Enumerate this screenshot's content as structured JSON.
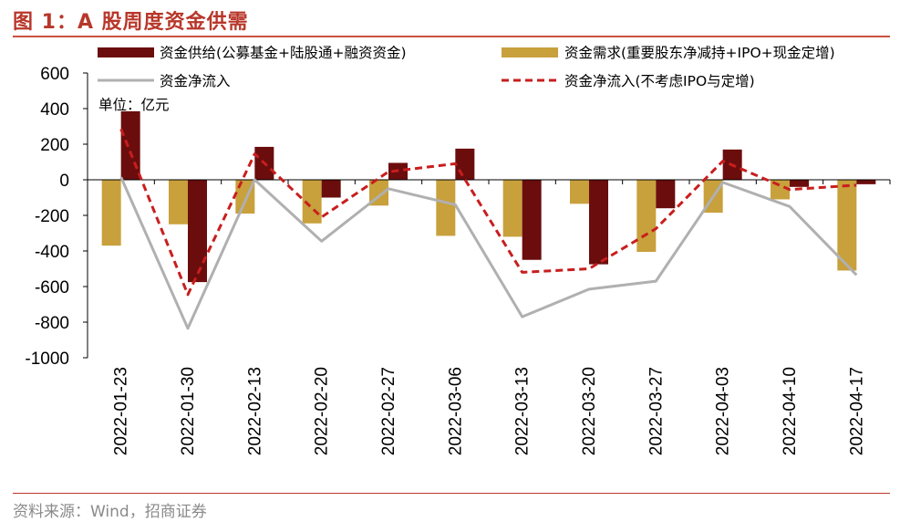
{
  "figure": {
    "title": "图 1：A 股周度资金供需",
    "source": "资料来源：Wind，招商证券",
    "unit": "单位：亿元"
  },
  "colors": {
    "supply": "#6b0d0d",
    "demand": "#c8a03c",
    "net": "#b0b0b0",
    "net_ex": "#c81e1e",
    "title": "#b8372a"
  },
  "chart_data": {
    "type": "bar",
    "categories": [
      "2022-01-23",
      "2022-01-30",
      "2022-02-13",
      "2022-02-20",
      "2022-02-27",
      "2022-03-06",
      "2022-03-13",
      "2022-03-20",
      "2022-03-27",
      "2022-04-03",
      "2022-04-10",
      "2022-04-17"
    ],
    "series": [
      {
        "name": "资金供给(公募基金+陆股通+融资资金)",
        "kind": "bar",
        "values": [
          385,
          -575,
          185,
          -100,
          95,
          175,
          -450,
          -475,
          -160,
          170,
          -40,
          -25
        ]
      },
      {
        "name": "资金需求(重要股东净减持+IPO+现金定增)",
        "kind": "bar",
        "values": [
          -370,
          -250,
          -190,
          -245,
          -145,
          -315,
          -320,
          -135,
          -405,
          -185,
          -110,
          -510
        ]
      },
      {
        "name": "资金净流入",
        "kind": "line",
        "values": [
          15,
          -835,
          0,
          -345,
          -50,
          -140,
          -770,
          -615,
          -570,
          -15,
          -150,
          -535
        ]
      },
      {
        "name": "资金净流入(不考虑IPO与定增)",
        "kind": "line-dashed",
        "values": [
          285,
          -645,
          145,
          -210,
          45,
          90,
          -520,
          -500,
          -275,
          105,
          -55,
          -30
        ]
      }
    ],
    "ylim": [
      -1000,
      600
    ],
    "yticks": [
      "600",
      "400",
      "200",
      "0",
      "-200",
      "-400",
      "-600",
      "-800",
      "-1000"
    ],
    "xlabel": "",
    "ylabel": ""
  }
}
